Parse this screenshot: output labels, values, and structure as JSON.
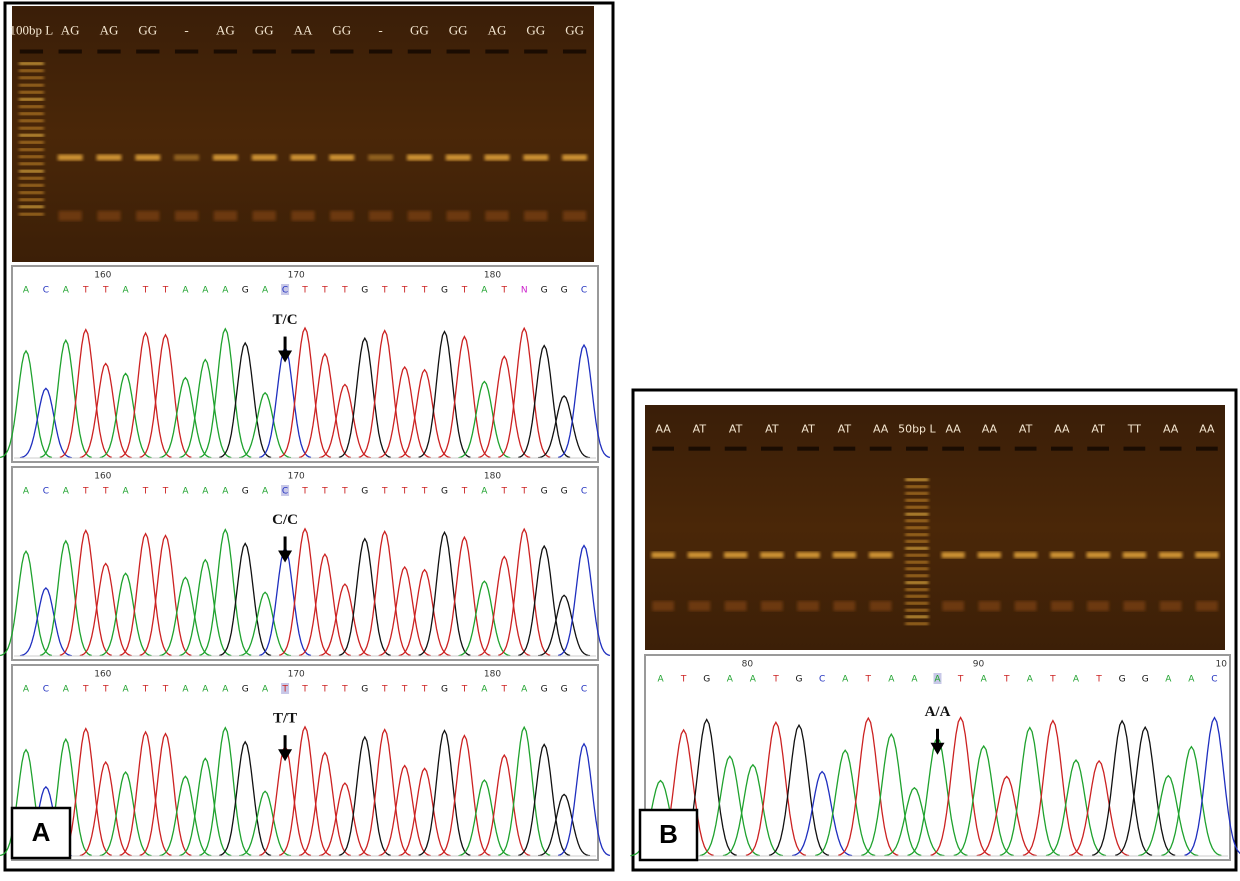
{
  "panel_a": {
    "label": "A",
    "gel": {
      "lanes": [
        "100bp L",
        "AG",
        "AG",
        "GG",
        "-",
        "AG",
        "GG",
        "AA",
        "GG",
        "-",
        "GG",
        "GG",
        "AG",
        "GG",
        "GG"
      ]
    },
    "chromatograms": [
      {
        "positions": [
          "160",
          "170",
          "180"
        ],
        "genotype": "T/C",
        "bases": [
          "A",
          "C",
          "A",
          "T",
          "T",
          "A",
          "T",
          "T",
          "A",
          "A",
          "A",
          "G",
          "A",
          "C",
          "T",
          "T",
          "T",
          "G",
          "T",
          "T",
          "T",
          "G",
          "T",
          "A",
          "T",
          "N",
          "G",
          "G",
          "C"
        ]
      },
      {
        "positions": [
          "160",
          "170",
          "180"
        ],
        "genotype": "C/C",
        "bases": [
          "A",
          "C",
          "A",
          "T",
          "T",
          "A",
          "T",
          "T",
          "A",
          "A",
          "A",
          "G",
          "A",
          "C",
          "T",
          "T",
          "T",
          "G",
          "T",
          "T",
          "T",
          "G",
          "T",
          "A",
          "T",
          "T",
          "G",
          "G",
          "C"
        ]
      },
      {
        "positions": [
          "160",
          "170",
          "180"
        ],
        "genotype": "T/T",
        "bases": [
          "A",
          "C",
          "A",
          "T",
          "T",
          "A",
          "T",
          "T",
          "A",
          "A",
          "A",
          "G",
          "A",
          "T",
          "T",
          "T",
          "T",
          "G",
          "T",
          "T",
          "T",
          "G",
          "T",
          "A",
          "T",
          "A",
          "G",
          "G",
          "C"
        ]
      }
    ]
  },
  "panel_b": {
    "label": "B",
    "gel": {
      "lanes": [
        "AA",
        "AT",
        "AT",
        "AT",
        "AT",
        "AT",
        "AA",
        "50bp L",
        "AA",
        "AA",
        "AT",
        "AA",
        "AT",
        "TT",
        "AA",
        "AA"
      ]
    },
    "chromatograms": [
      {
        "positions": [
          "80",
          "90",
          "10"
        ],
        "genotype": "A/A",
        "bases": [
          "A",
          "T",
          "G",
          "A",
          "A",
          "T",
          "G",
          "C",
          "A",
          "T",
          "A",
          "A",
          "A",
          "T",
          "A",
          "T",
          "A",
          "T",
          "A",
          "T",
          "G",
          "G",
          "A",
          "A",
          "C"
        ]
      }
    ]
  },
  "base_colors": {
    "A": "#1fa22e",
    "C": "#1f2fbf",
    "G": "#111111",
    "T": "#cc2222",
    "N": "#cc22cc"
  }
}
